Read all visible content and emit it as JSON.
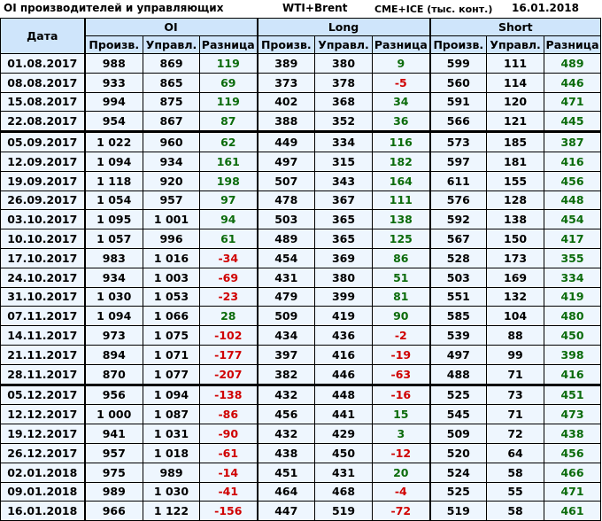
{
  "header": {
    "title": "OI производителей и управляющих",
    "instrument": "WTI+Brent",
    "source": "CME+ICE (тыс. конт.)",
    "date": "16.01.2018"
  },
  "columns": {
    "date": "Дата",
    "groups": [
      "OI",
      "Long",
      "Short"
    ],
    "sub": [
      "Произв.",
      "Управл.",
      "Разница"
    ]
  },
  "colors": {
    "positive": "#0b6b0b",
    "negative": "#d00000",
    "header_bg": "#cfe5fb",
    "cell_bg": "#eef6fe"
  },
  "rows": [
    [
      "01.08.2017",
      "988",
      "869",
      "119",
      "389",
      "380",
      "9",
      "599",
      "111",
      "489"
    ],
    [
      "08.08.2017",
      "933",
      "865",
      "69",
      "373",
      "378",
      "-5",
      "560",
      "114",
      "446"
    ],
    [
      "15.08.2017",
      "994",
      "875",
      "119",
      "402",
      "368",
      "34",
      "591",
      "120",
      "471"
    ],
    [
      "22.08.2017",
      "954",
      "867",
      "87",
      "388",
      "352",
      "36",
      "566",
      "121",
      "445"
    ],
    [
      "05.09.2017",
      "1 022",
      "960",
      "62",
      "449",
      "334",
      "116",
      "573",
      "185",
      "387"
    ],
    [
      "12.09.2017",
      "1 094",
      "934",
      "161",
      "497",
      "315",
      "182",
      "597",
      "181",
      "416"
    ],
    [
      "19.09.2017",
      "1 118",
      "920",
      "198",
      "507",
      "343",
      "164",
      "611",
      "155",
      "456"
    ],
    [
      "26.09.2017",
      "1 054",
      "957",
      "97",
      "478",
      "367",
      "111",
      "576",
      "128",
      "448"
    ],
    [
      "03.10.2017",
      "1 095",
      "1 001",
      "94",
      "503",
      "365",
      "138",
      "592",
      "138",
      "454"
    ],
    [
      "10.10.2017",
      "1 057",
      "996",
      "61",
      "489",
      "365",
      "125",
      "567",
      "150",
      "417"
    ],
    [
      "17.10.2017",
      "983",
      "1 016",
      "-34",
      "454",
      "369",
      "86",
      "528",
      "173",
      "355"
    ],
    [
      "24.10.2017",
      "934",
      "1 003",
      "-69",
      "431",
      "380",
      "51",
      "503",
      "169",
      "334"
    ],
    [
      "31.10.2017",
      "1 030",
      "1 053",
      "-23",
      "479",
      "399",
      "81",
      "551",
      "132",
      "419"
    ],
    [
      "07.11.2017",
      "1 094",
      "1 066",
      "28",
      "509",
      "419",
      "90",
      "585",
      "104",
      "480"
    ],
    [
      "14.11.2017",
      "973",
      "1 075",
      "-102",
      "434",
      "436",
      "-2",
      "539",
      "88",
      "450"
    ],
    [
      "21.11.2017",
      "894",
      "1 071",
      "-177",
      "397",
      "416",
      "-19",
      "497",
      "99",
      "398"
    ],
    [
      "28.11.2017",
      "870",
      "1 077",
      "-207",
      "382",
      "446",
      "-63",
      "488",
      "71",
      "416"
    ],
    [
      "05.12.2017",
      "956",
      "1 094",
      "-138",
      "432",
      "448",
      "-16",
      "525",
      "73",
      "451"
    ],
    [
      "12.12.2017",
      "1 000",
      "1 087",
      "-86",
      "456",
      "441",
      "15",
      "545",
      "71",
      "473"
    ],
    [
      "19.12.2017",
      "941",
      "1 031",
      "-90",
      "432",
      "429",
      "3",
      "509",
      "72",
      "438"
    ],
    [
      "26.12.2017",
      "957",
      "1 018",
      "-61",
      "438",
      "450",
      "-12",
      "520",
      "64",
      "456"
    ],
    [
      "02.01.2018",
      "975",
      "989",
      "-14",
      "451",
      "431",
      "20",
      "524",
      "58",
      "466"
    ],
    [
      "09.01.2018",
      "989",
      "1 030",
      "-41",
      "464",
      "468",
      "-4",
      "525",
      "55",
      "471"
    ],
    [
      "16.01.2018",
      "966",
      "1 122",
      "-156",
      "447",
      "519",
      "-72",
      "519",
      "58",
      "461"
    ]
  ],
  "section_breaks_before": [
    "05.09.2017",
    "05.12.2017"
  ]
}
